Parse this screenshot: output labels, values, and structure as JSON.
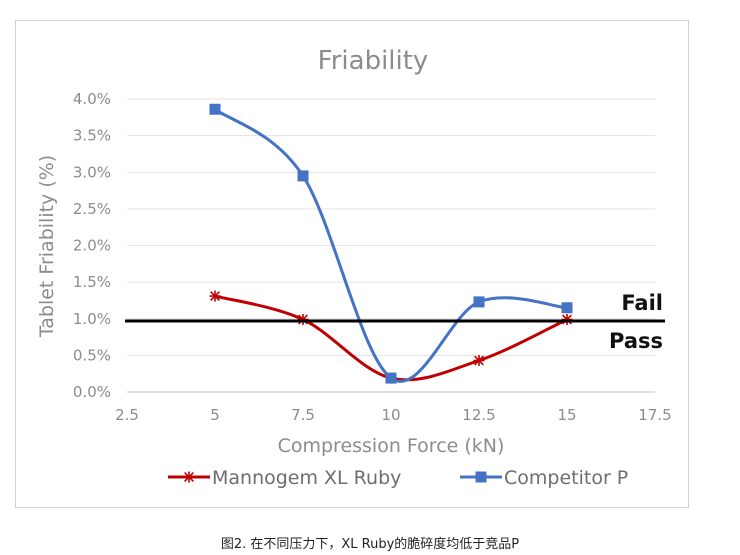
{
  "caption": "图2. 在不同压力下，XL Ruby的脆碎度均低于竞品P",
  "chart_data": {
    "type": "line",
    "title": "Friability",
    "xlabel": "Compression Force (kN)",
    "ylabel": "Tablet Friability (%)",
    "xlim": [
      2.5,
      17.5
    ],
    "ylim": [
      0,
      0.04
    ],
    "x_ticks": [
      "2.5",
      "5",
      "7.5",
      "10",
      "12.5",
      "15",
      "17.5"
    ],
    "y_ticks": [
      "0.0%",
      "0.5%",
      "1.0%",
      "1.5%",
      "2.0%",
      "2.5%",
      "3.0%",
      "3.5%",
      "4.0%"
    ],
    "grid": true,
    "legend_position": "bottom",
    "series": [
      {
        "name": "Mannogem XL Ruby",
        "color": "#c00000",
        "marker": "star",
        "smooth": true,
        "x": [
          5,
          7.5,
          10,
          12.5,
          15
        ],
        "y": [
          0.0131,
          0.0099,
          0.0019,
          0.0043,
          0.0099
        ]
      },
      {
        "name": "Competitor P",
        "color": "#4472c4",
        "marker": "square",
        "smooth": true,
        "x": [
          5,
          7.5,
          10,
          12.5,
          15
        ],
        "y": [
          0.0386,
          0.0295,
          0.0019,
          0.0123,
          0.0115
        ]
      }
    ],
    "threshold": {
      "value": 0.0097,
      "color": "#000000",
      "label_above": "Fail",
      "label_below": "Pass"
    }
  }
}
